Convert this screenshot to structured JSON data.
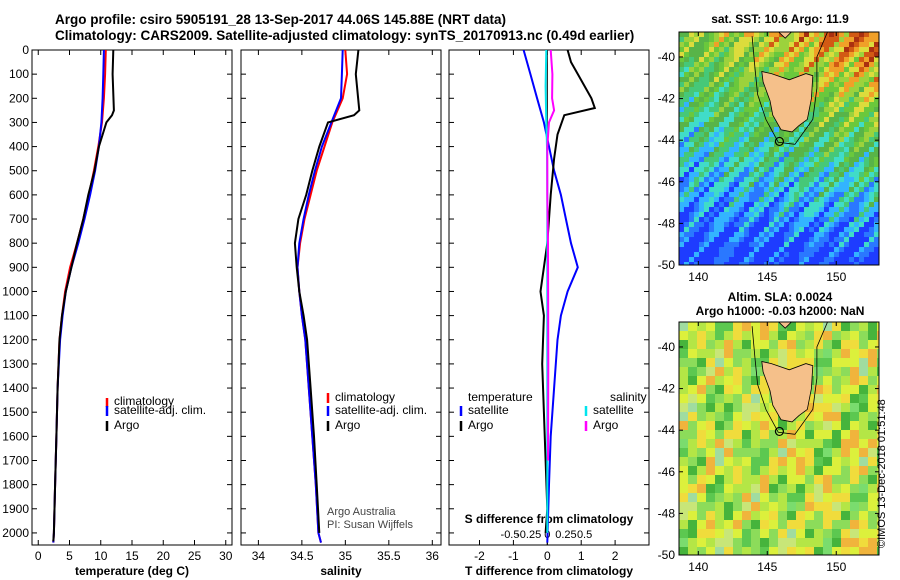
{
  "title_line1": "Argo profile: csiro 5905191_28 13-Sep-2017 44.06S 145.88E (NRT data)",
  "title_line2": "Climatology: CARS2009. Satellite-adjusted climatology: synTS_20170913.nc (0.49d earlier)",
  "map_sst_title": "sat. SST: 10.6 Argo: 11.9",
  "map_sla_title1": "Altim. SLA: 0.0024",
  "map_sla_title2": "Argo h1000: -0.03 h2000: NaN",
  "stamp": "©IMOS 13-Dec-2018 01:51:48",
  "credit1": "Argo Australia",
  "credit2": "PI: Susan Wijffels",
  "colors": {
    "climatology": "#ff0000",
    "satellite": "#0000ff",
    "argo": "#000000",
    "s_satellite": "#00e5ee",
    "s_argo": "#ff00ff",
    "land": "#f5c08a"
  },
  "legend_tp": {
    "climatology": "climatology",
    "satellite": "satellite-adj. clim.",
    "argo": "Argo"
  },
  "legend_diff": {
    "t_head": "temperature",
    "s_head": "salinity",
    "satellite": "satellite",
    "argo": "Argo"
  },
  "chart_data": [
    {
      "type": "line",
      "xlabel": "temperature (deg C)",
      "ylim": [
        2050,
        0
      ],
      "xlim": [
        -1,
        31
      ],
      "xticks": [
        0,
        5,
        10,
        15,
        20,
        25,
        30
      ],
      "yticks": [
        0,
        100,
        200,
        300,
        400,
        500,
        600,
        700,
        800,
        900,
        1000,
        1100,
        1200,
        1300,
        1400,
        1500,
        1600,
        1700,
        1800,
        1900,
        2000
      ],
      "series": [
        {
          "name": "climatology",
          "color": "#ff0000",
          "x": [
            10.8,
            10.7,
            10.5,
            10.2,
            9.6,
            8.9,
            8.1,
            7.2,
            6.2,
            5.1,
            4.3,
            3.8,
            3.4,
            3.1,
            2.9,
            2.7,
            2.5,
            2.4
          ],
          "y": [
            0,
            100,
            200,
            300,
            400,
            500,
            600,
            700,
            800,
            900,
            1000,
            1100,
            1200,
            1400,
            1600,
            1800,
            2000,
            2040
          ]
        },
        {
          "name": "satellite-adj. clim.",
          "color": "#0000ff",
          "x": [
            10.5,
            10.4,
            10.3,
            10.1,
            9.7,
            9.1,
            8.3,
            7.4,
            6.4,
            5.3,
            4.4,
            3.9,
            3.5,
            3.1,
            2.9,
            2.7,
            2.5,
            2.4
          ],
          "y": [
            0,
            100,
            200,
            300,
            400,
            500,
            600,
            700,
            800,
            900,
            1000,
            1100,
            1200,
            1400,
            1600,
            1800,
            2000,
            2040
          ]
        },
        {
          "name": "Argo",
          "color": "#000000",
          "x": [
            12.0,
            11.9,
            12.1,
            11.8,
            10.9,
            9.7,
            9.0,
            8.0,
            7.2,
            6.2,
            5.3,
            4.4,
            3.8,
            3.4,
            3.1,
            2.9,
            2.7,
            2.5,
            2.4
          ],
          "y": [
            0,
            100,
            250,
            270,
            300,
            400,
            500,
            600,
            700,
            800,
            900,
            1000,
            1100,
            1200,
            1400,
            1600,
            1800,
            2000,
            2035
          ]
        }
      ]
    },
    {
      "type": "line",
      "xlabel": "salinity",
      "ylim": [
        2050,
        0
      ],
      "xlim": [
        33.8,
        36.1
      ],
      "xticks": [
        34,
        34.5,
        35,
        35.5,
        36
      ],
      "series": [
        {
          "name": "climatology",
          "color": "#ff0000",
          "x": [
            35.0,
            35.02,
            34.97,
            34.85,
            34.76,
            34.67,
            34.6,
            34.53,
            34.48,
            34.45,
            34.47,
            34.5,
            34.54,
            34.58,
            34.62,
            34.66,
            34.69,
            34.72
          ],
          "y": [
            0,
            100,
            200,
            300,
            400,
            500,
            600,
            700,
            800,
            900,
            1000,
            1100,
            1200,
            1400,
            1600,
            1800,
            2000,
            2040
          ]
        },
        {
          "name": "satellite-adj. clim.",
          "color": "#0000ff",
          "x": [
            34.97,
            34.96,
            34.95,
            34.84,
            34.73,
            34.65,
            34.58,
            34.52,
            34.47,
            34.45,
            34.47,
            34.5,
            34.54,
            34.58,
            34.62,
            34.66,
            34.69,
            34.72
          ],
          "y": [
            0,
            100,
            200,
            300,
            400,
            500,
            600,
            700,
            800,
            900,
            1000,
            1100,
            1200,
            1400,
            1600,
            1800,
            2000,
            2040
          ]
        },
        {
          "name": "Argo",
          "color": "#000000",
          "x": [
            35.15,
            35.12,
            35.16,
            35.1,
            34.8,
            34.7,
            34.62,
            34.55,
            34.46,
            34.42,
            34.44,
            34.47,
            34.52,
            34.56,
            34.6,
            34.64,
            34.67,
            34.7
          ],
          "y": [
            0,
            100,
            250,
            270,
            300,
            400,
            500,
            600,
            700,
            800,
            900,
            1000,
            1100,
            1200,
            1400,
            1600,
            1800,
            2000
          ]
        }
      ]
    },
    {
      "type": "line",
      "xlabel": "T difference from climatology",
      "xlabel_top": "S difference from climatology",
      "ylim": [
        2050,
        0
      ],
      "xlim": [
        -2.9,
        3.0
      ],
      "xticks": [
        -2,
        -1,
        0,
        1,
        2
      ],
      "sticks": [
        -0.5,
        -0.25,
        0,
        0.25,
        0.5
      ],
      "series": [
        {
          "name": "temperature satellite",
          "color": "#0000ff",
          "x": [
            -0.7,
            -0.5,
            -0.3,
            -0.1,
            0.05,
            0.2,
            0.4,
            0.55,
            0.7,
            0.9,
            0.6,
            0.4,
            0.3,
            0.2,
            0.1,
            0.05,
            0.0
          ],
          "y": [
            0,
            100,
            200,
            300,
            400,
            500,
            600,
            700,
            800,
            900,
            1000,
            1100,
            1200,
            1400,
            1600,
            1800,
            2040
          ]
        },
        {
          "name": "temperature Argo",
          "color": "#000000",
          "x": [
            0.6,
            0.7,
            0.9,
            1.3,
            1.4,
            0.5,
            0.3,
            0.2,
            0.1,
            0.0,
            -0.1,
            -0.2,
            -0.1,
            -0.15,
            -0.1,
            -0.05,
            0.0,
            -0.05
          ],
          "y": [
            0,
            50,
            100,
            200,
            240,
            270,
            350,
            450,
            600,
            800,
            900,
            1000,
            1100,
            1300,
            1500,
            1700,
            1900,
            2000
          ]
        },
        {
          "name": "salinity satellite",
          "color": "#00e5ee",
          "x": [
            -0.03,
            -0.05,
            -0.03,
            -0.01,
            0.0,
            0.0,
            0.0,
            0.0,
            0.0,
            0.0
          ],
          "y": [
            0,
            150,
            300,
            400,
            600,
            800,
            1000,
            1300,
            1600,
            2000
          ]
        },
        {
          "name": "salinity Argo",
          "color": "#ff00ff",
          "x": [
            0.1,
            0.15,
            0.14,
            0.2,
            0.05,
            0.0,
            0.0,
            0.02,
            0.03,
            0.02
          ],
          "y": [
            0,
            100,
            200,
            250,
            300,
            400,
            600,
            800,
            1300,
            1700
          ]
        }
      ]
    }
  ],
  "maps": {
    "lon_ticks": [
      140,
      145,
      150
    ],
    "lat_ticks": [
      -40,
      -42,
      -44,
      -46,
      -48,
      -50
    ],
    "float_lon": 145.88,
    "float_lat": -44.06
  }
}
